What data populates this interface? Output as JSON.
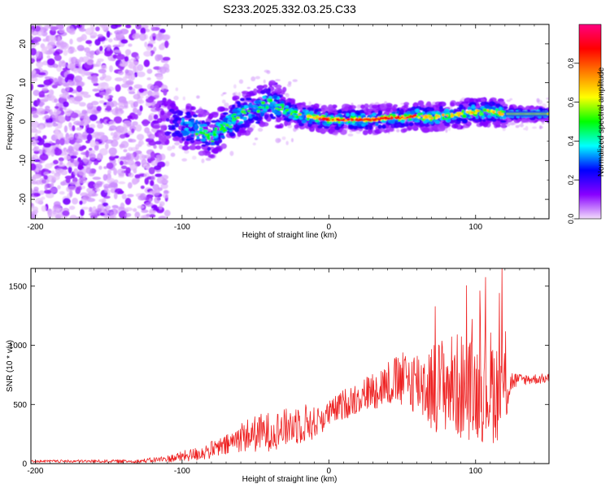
{
  "title": "S233.2025.332.03.25.C33",
  "chart_data": [
    {
      "type": "heatmap",
      "xlabel": "Height of straight line (km)",
      "ylabel": "Frequency (Hz)",
      "xlim": [
        -203,
        150
      ],
      "ylim": [
        -25,
        25
      ],
      "xticks": [
        -200,
        -100,
        0,
        100
      ],
      "yticks": [
        -20,
        -10,
        0,
        10,
        20
      ],
      "colorbar": {
        "label": "Normalized spectral amplitude",
        "range": [
          0.0,
          1.0
        ],
        "ticks": [
          0.0,
          0.2,
          0.4,
          0.6,
          0.8
        ],
        "colors": [
          "#f3ddfb",
          "#8800ff",
          "#0000ff",
          "#00ffff",
          "#00ff00",
          "#ffff00",
          "#ff8000",
          "#ff0000",
          "#ff0080"
        ]
      },
      "ridge": {
        "x": [
          -120,
          -110,
          -100,
          -90,
          -80,
          -70,
          -60,
          -50,
          -40,
          -30,
          -20,
          -10,
          0,
          10,
          20,
          30,
          40,
          50,
          60,
          70,
          80,
          90,
          100,
          110,
          120,
          130,
          150
        ],
        "y": [
          0,
          0,
          -1,
          -2,
          -4,
          -1,
          2,
          3,
          5,
          3,
          1.5,
          1,
          0.5,
          0.5,
          0.5,
          0.5,
          1,
          1,
          1.5,
          1,
          1.5,
          2,
          2.5,
          2.5,
          2,
          2,
          2
        ]
      }
    },
    {
      "type": "line",
      "xlabel": "Height of straight line (km)",
      "ylabel": "SNR (10 * v/v)",
      "xlim": [
        -203,
        150
      ],
      "ylim": [
        0,
        1650
      ],
      "xticks": [
        -200,
        -100,
        0,
        100
      ],
      "yticks": [
        0,
        500,
        1000,
        1500
      ],
      "line_color": "#ee2222",
      "envelope": {
        "x": [
          -203,
          -130,
          -110,
          -90,
          -70,
          -60,
          -45,
          -30,
          -20,
          -10,
          0,
          10,
          20,
          30,
          40,
          50,
          60,
          70,
          80,
          90,
          100,
          110,
          115,
          120,
          125,
          130,
          150
        ],
        "mean": [
          20,
          20,
          40,
          80,
          150,
          230,
          260,
          300,
          350,
          340,
          420,
          500,
          560,
          620,
          680,
          700,
          700,
          650,
          680,
          650,
          620,
          650,
          620,
          650,
          700,
          710,
          720
        ],
        "amp": [
          10,
          15,
          30,
          60,
          90,
          130,
          170,
          160,
          190,
          140,
          110,
          130,
          140,
          160,
          200,
          240,
          280,
          380,
          420,
          460,
          420,
          500,
          430,
          380,
          90,
          50,
          40
        ]
      },
      "peak": {
        "x": 118,
        "y": 1650
      }
    }
  ]
}
